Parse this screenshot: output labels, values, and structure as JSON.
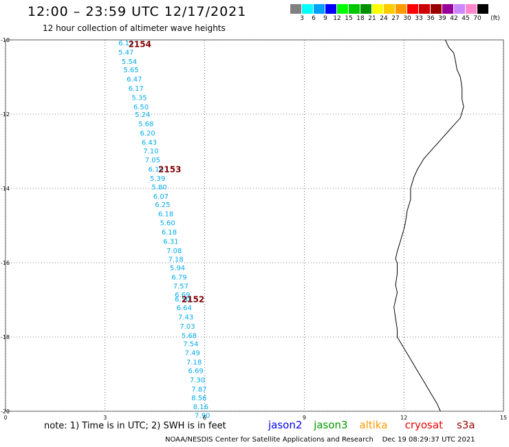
{
  "header": {
    "title": "12:00 – 23:59 UTC 12/17/2021",
    "subtitle": "12 hour collection of altimeter wave heights"
  },
  "legend": {
    "unit": "(ft)",
    "colors": [
      "#808080",
      "#00ffff",
      "#00a0ff",
      "#0000ff",
      "#00ff00",
      "#00c800",
      "#009000",
      "#ffff00",
      "#ffcc00",
      "#ff9900",
      "#ff0000",
      "#cc0000",
      "#990000",
      "#990099",
      "#cc88ff",
      "#ff88cc",
      "#000000"
    ],
    "labels": [
      "3",
      "6",
      "9",
      "12",
      "15",
      "18",
      "21",
      "24",
      "27",
      "30",
      "33",
      "36",
      "39",
      "42",
      "45",
      "70"
    ]
  },
  "map": {
    "x_range": [
      0,
      15
    ],
    "y_range": [
      -20,
      -10
    ],
    "x_ticks": [
      "0",
      "3",
      "6",
      "9",
      "12",
      "15"
    ],
    "y_ticks": [
      "-10",
      "-12",
      "-14",
      "-16",
      "-18",
      "-20"
    ],
    "grid": true,
    "track_color": "#00aaee",
    "pass_color": "#800000",
    "wave_heights": [
      {
        "lon": 3.4,
        "lat": -10.07,
        "swh": "6.12"
      },
      {
        "lon": 3.4,
        "lat": -10.32,
        "swh": "5.47"
      },
      {
        "lon": 3.5,
        "lat": -10.57,
        "swh": "5.54"
      },
      {
        "lon": 3.55,
        "lat": -10.8,
        "swh": "5.65"
      },
      {
        "lon": 3.65,
        "lat": -11.05,
        "swh": "6.47"
      },
      {
        "lon": 3.7,
        "lat": -11.3,
        "swh": "6.17"
      },
      {
        "lon": 3.8,
        "lat": -11.55,
        "swh": "5.35"
      },
      {
        "lon": 3.85,
        "lat": -11.8,
        "swh": "6.50"
      },
      {
        "lon": 3.9,
        "lat": -12.0,
        "swh": "5.24"
      },
      {
        "lon": 4.0,
        "lat": -12.25,
        "swh": "5.68"
      },
      {
        "lon": 4.05,
        "lat": -12.5,
        "swh": "6.20"
      },
      {
        "lon": 4.1,
        "lat": -12.75,
        "swh": "6.43"
      },
      {
        "lon": 4.15,
        "lat": -12.98,
        "swh": "7.10"
      },
      {
        "lon": 4.2,
        "lat": -13.22,
        "swh": "7.05"
      },
      {
        "lon": 4.3,
        "lat": -13.47,
        "swh": "6.19"
      },
      {
        "lon": 4.35,
        "lat": -13.72,
        "swh": "5.39"
      },
      {
        "lon": 4.4,
        "lat": -13.95,
        "swh": "5.80"
      },
      {
        "lon": 4.45,
        "lat": -14.2,
        "swh": "6.07"
      },
      {
        "lon": 4.5,
        "lat": -14.43,
        "swh": "6.25"
      },
      {
        "lon": 4.6,
        "lat": -14.68,
        "swh": "6.18"
      },
      {
        "lon": 4.65,
        "lat": -14.92,
        "swh": "5.60"
      },
      {
        "lon": 4.7,
        "lat": -15.17,
        "swh": "6.18"
      },
      {
        "lon": 4.75,
        "lat": -15.42,
        "swh": "6.31"
      },
      {
        "lon": 4.85,
        "lat": -15.67,
        "swh": "7.08"
      },
      {
        "lon": 4.9,
        "lat": -15.9,
        "swh": "7.18"
      },
      {
        "lon": 4.95,
        "lat": -16.13,
        "swh": "5.94"
      },
      {
        "lon": 5.0,
        "lat": -16.38,
        "swh": "6.79"
      },
      {
        "lon": 5.05,
        "lat": -16.62,
        "swh": "7.57"
      },
      {
        "lon": 5.1,
        "lat": -16.85,
        "swh": "6.69"
      },
      {
        "lon": 5.1,
        "lat": -16.97,
        "swh": "6.50"
      },
      {
        "lon": 5.15,
        "lat": -17.2,
        "swh": "6.64"
      },
      {
        "lon": 5.2,
        "lat": -17.45,
        "swh": "7.43"
      },
      {
        "lon": 5.25,
        "lat": -17.7,
        "swh": "7.03"
      },
      {
        "lon": 5.3,
        "lat": -17.95,
        "swh": "5.68"
      },
      {
        "lon": 5.35,
        "lat": -18.18,
        "swh": "7.54"
      },
      {
        "lon": 5.4,
        "lat": -18.42,
        "swh": "7.49"
      },
      {
        "lon": 5.45,
        "lat": -18.67,
        "swh": "7.18"
      },
      {
        "lon": 5.5,
        "lat": -18.9,
        "swh": "6.69"
      },
      {
        "lon": 5.55,
        "lat": -19.15,
        "swh": "7.30"
      },
      {
        "lon": 5.6,
        "lat": -19.4,
        "swh": "7.87"
      },
      {
        "lon": 5.6,
        "lat": -19.63,
        "swh": "8.56"
      },
      {
        "lon": 5.65,
        "lat": -19.87,
        "swh": "8.16"
      },
      {
        "lon": 5.7,
        "lat": -20.1,
        "swh": "7.90"
      }
    ],
    "pass_labels": [
      {
        "lon": 3.7,
        "lat": -10.1,
        "text": "2154"
      },
      {
        "lon": 4.6,
        "lat": -13.47,
        "text": "2153"
      },
      {
        "lon": 5.3,
        "lat": -16.97,
        "text": "2152"
      }
    ],
    "coastline": [
      [
        13.25,
        -10.0
      ],
      [
        13.35,
        -10.2
      ],
      [
        13.5,
        -10.35
      ],
      [
        13.55,
        -10.55
      ],
      [
        13.6,
        -10.8
      ],
      [
        13.7,
        -11.0
      ],
      [
        13.75,
        -11.3
      ],
      [
        13.75,
        -11.6
      ],
      [
        13.8,
        -11.8
      ],
      [
        13.7,
        -12.1
      ],
      [
        13.5,
        -12.3
      ],
      [
        13.3,
        -12.5
      ],
      [
        13.1,
        -12.7
      ],
      [
        12.9,
        -12.9
      ],
      [
        12.6,
        -13.2
      ],
      [
        12.4,
        -13.5
      ],
      [
        12.3,
        -13.7
      ],
      [
        12.2,
        -14.0
      ],
      [
        12.2,
        -14.3
      ],
      [
        12.1,
        -14.6
      ],
      [
        12.05,
        -14.9
      ],
      [
        12.0,
        -15.1
      ],
      [
        11.9,
        -15.4
      ],
      [
        11.8,
        -15.7
      ],
      [
        11.75,
        -15.9
      ],
      [
        11.8,
        -16.0
      ],
      [
        11.8,
        -16.3
      ],
      [
        11.75,
        -16.6
      ],
      [
        11.8,
        -16.8
      ],
      [
        11.75,
        -17.0
      ],
      [
        11.7,
        -17.2
      ],
      [
        11.75,
        -17.5
      ],
      [
        11.8,
        -17.8
      ],
      [
        11.8,
        -18.0
      ],
      [
        12.0,
        -18.3
      ],
      [
        12.2,
        -18.6
      ],
      [
        12.4,
        -18.9
      ],
      [
        12.6,
        -19.2
      ],
      [
        12.8,
        -19.5
      ],
      [
        13.0,
        -19.8
      ],
      [
        13.1,
        -20.0
      ]
    ]
  },
  "footer": {
    "note": "note:  1) Time is in UTC;  2) SWH is in feet",
    "satellites": [
      {
        "name": "jason2",
        "color": "#0000ee"
      },
      {
        "name": "jason3",
        "color": "#009900"
      },
      {
        "name": "altika",
        "color": "#ff9900"
      },
      {
        "name": "cryosat",
        "color": "#ee0000"
      },
      {
        "name": "s3a",
        "color": "#990000"
      }
    ],
    "credit": "NOAA/NESDIS Center for Satellite Applications and Research",
    "timestamp": "Dec 19 08:29:37 UTC 2021"
  }
}
